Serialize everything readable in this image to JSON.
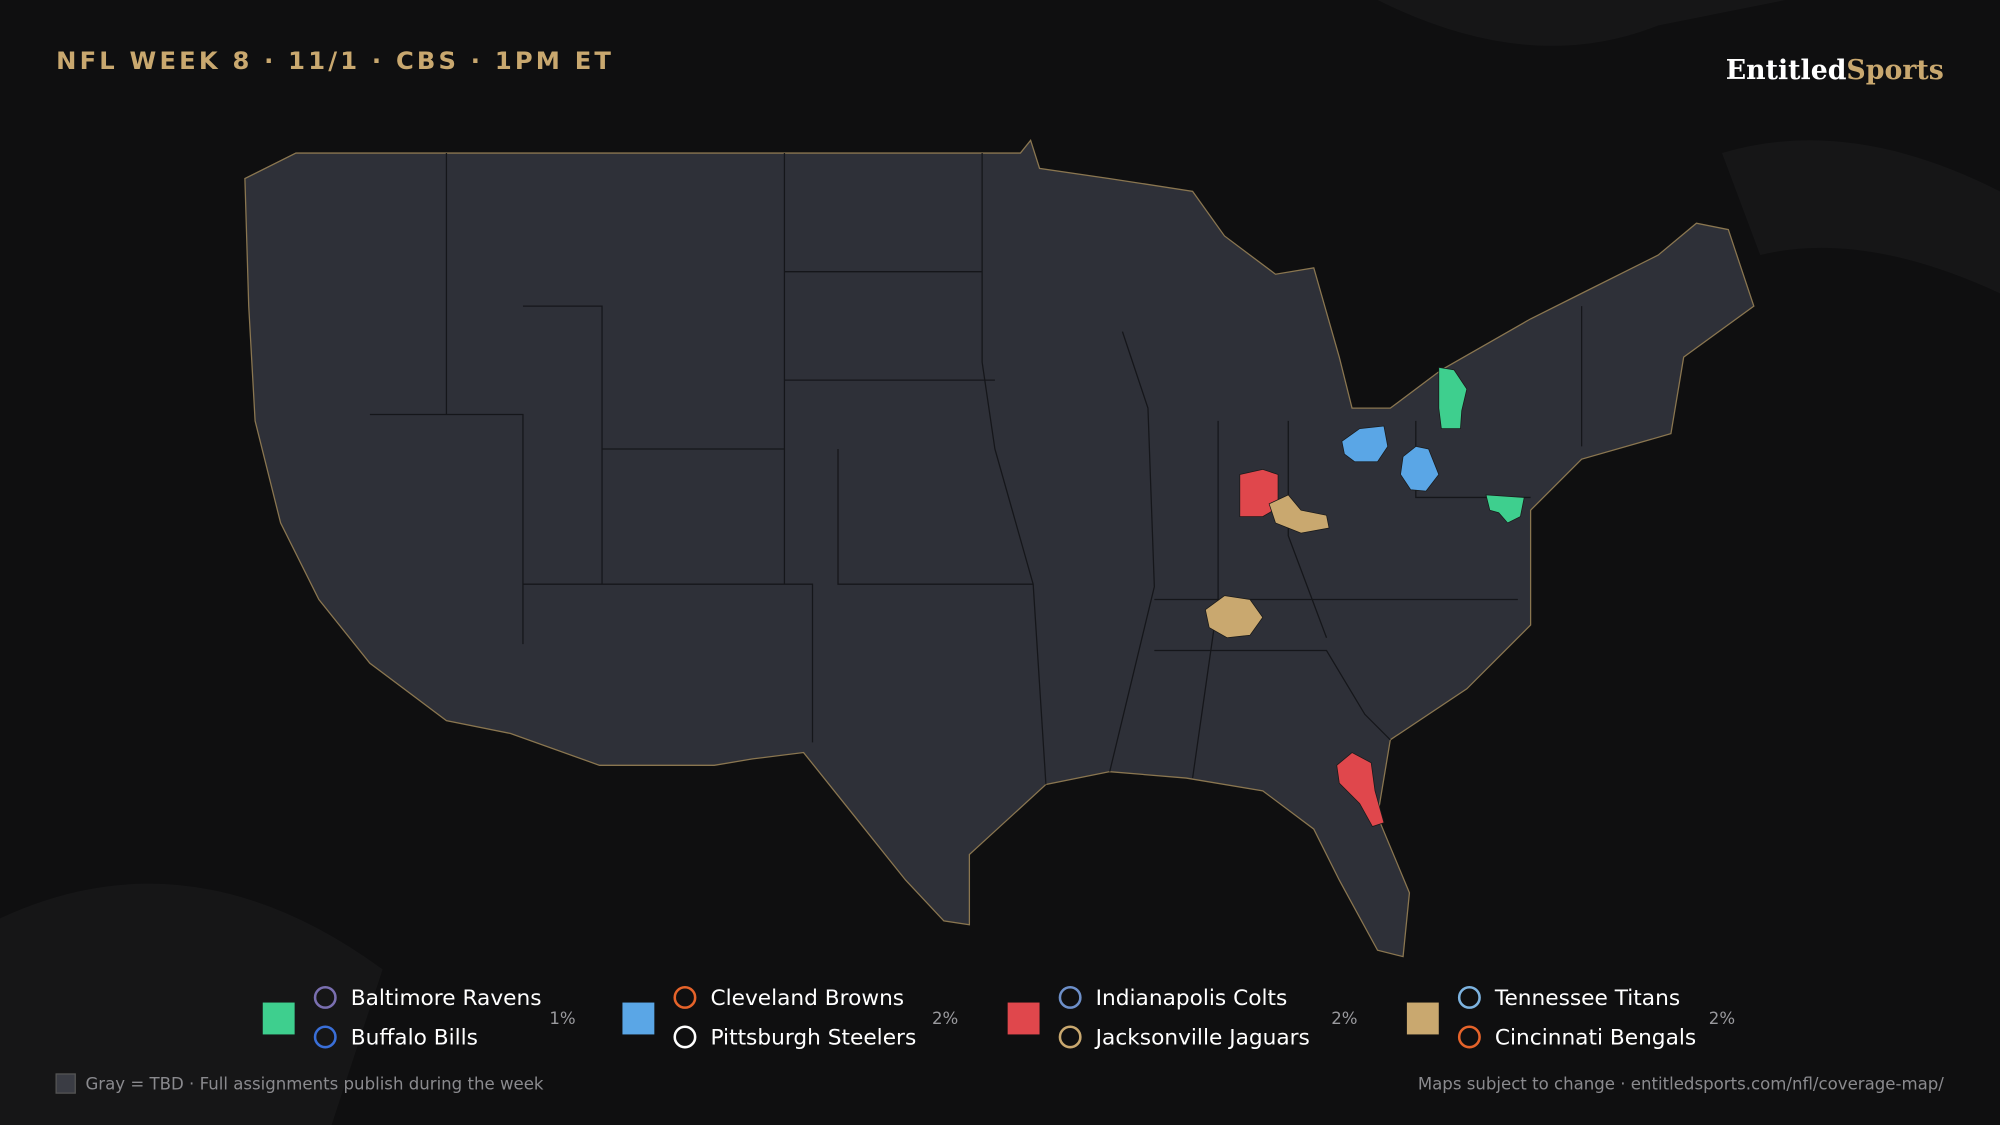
{
  "header": {
    "title": "NFL WEEK 8 · 11/1 · CBS · 1PM ET",
    "brand": {
      "first": "Entitled",
      "second": "Sports"
    }
  },
  "legend": [
    {
      "color": "#3ecf8e",
      "teams": [
        "Baltimore Ravens",
        "Buffalo Bills"
      ],
      "share": "1%"
    },
    {
      "color": "#5aa6e6",
      "teams": [
        "Cleveland Browns",
        "Pittsburgh Steelers"
      ],
      "share": "2%"
    },
    {
      "color": "#e0474c",
      "teams": [
        "Indianapolis Colts",
        "Jacksonville Jaguars"
      ],
      "share": "2%"
    },
    {
      "color": "#c9a86f",
      "teams": [
        "Tennessee Titans",
        "Cincinnati Bengals"
      ],
      "share": "2%"
    }
  ],
  "footer": {
    "note": "Gray = TBD · Full assignments publish during the week",
    "source": "Maps subject to change · entitledsports.com/nfl/coverage-map/"
  }
}
